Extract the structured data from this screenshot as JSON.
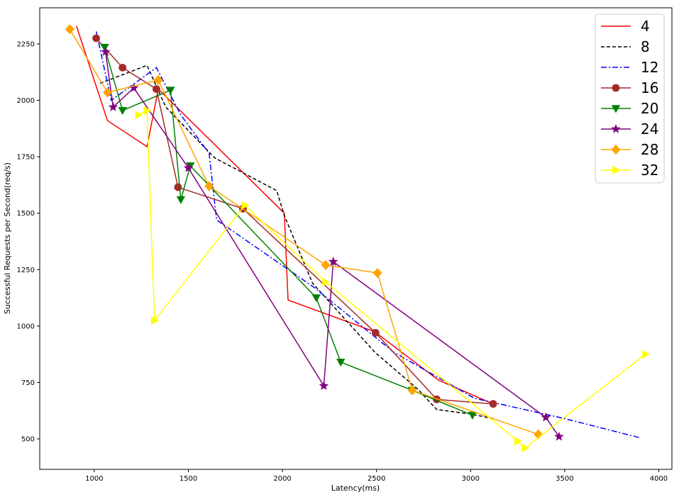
{
  "chart_data": {
    "type": "line",
    "title": "",
    "xlabel": "Latency(ms)",
    "ylabel": "Successful Requests per Second(req/s)",
    "xlim": [
      710,
      4070
    ],
    "ylim": [
      365,
      2410
    ],
    "xticks": [
      1000,
      1500,
      2000,
      2500,
      3000,
      3500,
      4000
    ],
    "yticks": [
      500,
      750,
      1000,
      1250,
      1500,
      1750,
      2000,
      2250
    ],
    "grid": false,
    "legend_position": "top-right",
    "series": [
      {
        "name": "4",
        "color": "#ff0000",
        "dash": "solid",
        "marker": "none",
        "points": [
          [
            905,
            2330
          ],
          [
            1070,
            1910
          ],
          [
            1280,
            1795
          ],
          [
            1340,
            2050
          ],
          [
            2010,
            1500
          ],
          [
            2030,
            1115
          ],
          [
            2490,
            975
          ],
          [
            2830,
            760
          ],
          [
            3120,
            655
          ]
        ]
      },
      {
        "name": "8",
        "color": "#000000",
        "dash": "dashed",
        "marker": "none",
        "points": [
          [
            1030,
            2075
          ],
          [
            1280,
            2155
          ],
          [
            1380,
            1970
          ],
          [
            1640,
            1745
          ],
          [
            1970,
            1600
          ],
          [
            2010,
            1490
          ],
          [
            2160,
            1190
          ],
          [
            2490,
            885
          ],
          [
            2720,
            720
          ],
          [
            2820,
            630
          ],
          [
            3000,
            610
          ],
          [
            3120,
            590
          ]
        ]
      },
      {
        "name": "12",
        "color": "#0000ff",
        "dash": "dashdot",
        "marker": "none",
        "points": [
          [
            1010,
            2305
          ],
          [
            1090,
            2000
          ],
          [
            1330,
            2145
          ],
          [
            1460,
            1935
          ],
          [
            1610,
            1765
          ],
          [
            1650,
            1470
          ],
          [
            2170,
            1170
          ],
          [
            2590,
            885
          ],
          [
            3020,
            680
          ],
          [
            3500,
            590
          ],
          [
            3900,
            505
          ]
        ]
      },
      {
        "name": "16",
        "color": "#a52a2a",
        "dash": "solid",
        "marker": "circle",
        "points": [
          [
            1010,
            2275
          ],
          [
            1150,
            2145
          ],
          [
            1330,
            2050
          ],
          [
            1445,
            1615
          ],
          [
            1790,
            1520
          ],
          [
            2495,
            970
          ],
          [
            2820,
            675
          ],
          [
            3120,
            655
          ]
        ]
      },
      {
        "name": "20",
        "color": "#008000",
        "dash": "solid",
        "marker": "triangle-down",
        "points": [
          [
            1055,
            2235
          ],
          [
            1150,
            1955
          ],
          [
            1405,
            2045
          ],
          [
            1460,
            1560
          ],
          [
            1510,
            1710
          ],
          [
            2180,
            1125
          ],
          [
            2310,
            840
          ],
          [
            2690,
            715
          ],
          [
            3010,
            605
          ]
        ]
      },
      {
        "name": "24",
        "color": "#800080",
        "dash": "solid",
        "marker": "star",
        "points": [
          [
            1060,
            2215
          ],
          [
            1100,
            1970
          ],
          [
            1210,
            2055
          ],
          [
            1500,
            1700
          ],
          [
            2220,
            735
          ],
          [
            2270,
            1285
          ],
          [
            3400,
            595
          ],
          [
            3470,
            510
          ]
        ]
      },
      {
        "name": "28",
        "color": "#ffa500",
        "dash": "solid",
        "marker": "diamond",
        "points": [
          [
            870,
            2315
          ],
          [
            1070,
            2035
          ],
          [
            1340,
            2090
          ],
          [
            1610,
            1620
          ],
          [
            2230,
            1270
          ],
          [
            2505,
            1235
          ],
          [
            2690,
            715
          ],
          [
            3360,
            520
          ]
        ]
      },
      {
        "name": "32",
        "color": "#ffff00",
        "dash": "solid",
        "marker": "triangle-right",
        "points": [
          [
            1235,
            1935
          ],
          [
            1280,
            1955
          ],
          [
            1320,
            1025
          ],
          [
            1800,
            1535
          ],
          [
            2230,
            1195
          ],
          [
            3250,
            490
          ],
          [
            3290,
            460
          ],
          [
            3930,
            875
          ]
        ]
      }
    ]
  }
}
